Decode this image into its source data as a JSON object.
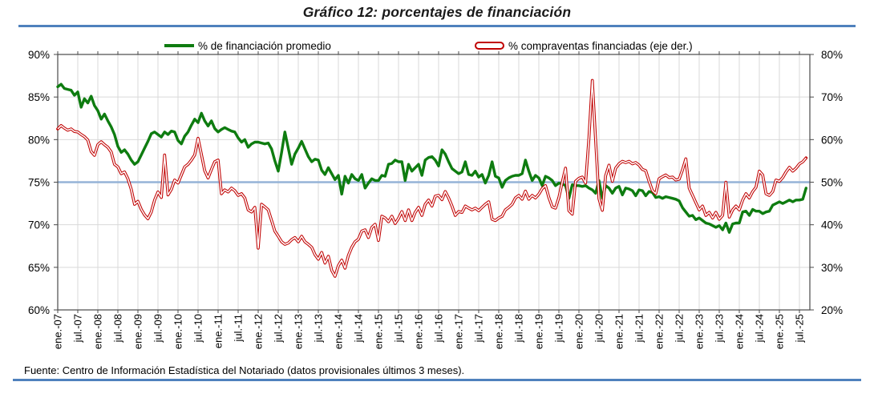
{
  "title": "Gráfico 12: porcentajes de financiación",
  "source": "Fuente: Centro de Información Estadística del Notariado (datos provisionales últimos 3 meses).",
  "legend": [
    {
      "label": "% de financiación promedio",
      "color": "#0e7c10",
      "marker": "line"
    },
    {
      "label": "% compraventas financiadas (eje der.)",
      "color": "#c00000",
      "marker": "outlined-line"
    }
  ],
  "colors": {
    "rule_blue": "#4f81bd",
    "reference_line": "#95b3d7",
    "grid": "#d9d9d9",
    "frame": "#4a4a4a",
    "green": "#0e7c10",
    "red": "#c00000"
  },
  "axes": {
    "left_ticks": [
      "90%",
      "85%",
      "80%",
      "75%",
      "70%",
      "65%",
      "60%"
    ],
    "right_ticks": [
      "80%",
      "70%",
      "60%",
      "50%",
      "40%",
      "30%",
      "20%"
    ],
    "x_ticks": [
      "ene.-07",
      "jul.-07",
      "ene.-08",
      "jul.-08",
      "ene.-09",
      "jul.-09",
      "ene.-10",
      "jul.-10",
      "ene.-11",
      "jul.-11",
      "ene.-12",
      "jul.-12",
      "ene.-13",
      "jul.-13",
      "ene.-14",
      "jul.-14",
      "ene.-15",
      "jul.-15",
      "ene.-16",
      "jul.-16",
      "ene.-17",
      "jul.-17",
      "ene.-18",
      "jul.-18",
      "ene.-19",
      "jul.-19",
      "ene.-20",
      "jul.-20",
      "ene.-21",
      "jul.-21",
      "ene.-22",
      "jul.-22",
      "ene.-23",
      "jul.-23",
      "ene.-24",
      "jul.-24",
      "ene.-25",
      "jul.-25"
    ]
  },
  "chart_data": {
    "type": "line",
    "freq": "monthly",
    "start": "ene.-07",
    "end": "sep.-25",
    "grid": true,
    "legend_position": "top",
    "left_axis": {
      "min": 60,
      "max": 90,
      "step": 5
    },
    "right_axis": {
      "min": 20,
      "max": 80,
      "step": 10
    },
    "reference_line_left": 75,
    "series": [
      {
        "name": "% de financiación promedio",
        "axis": "left",
        "color": "#0e7c10",
        "values": [
          86.2,
          86.5,
          86.0,
          85.9,
          85.8,
          85.2,
          85.6,
          83.8,
          84.8,
          84.3,
          85.1,
          84.0,
          83.4,
          82.4,
          83.0,
          82.2,
          81.5,
          80.6,
          79.2,
          78.5,
          78.8,
          78.3,
          77.6,
          77.1,
          77.4,
          78.2,
          79.0,
          79.8,
          80.7,
          80.9,
          80.6,
          80.3,
          80.9,
          80.6,
          81.0,
          80.9,
          79.9,
          79.5,
          80.4,
          80.9,
          81.7,
          82.4,
          82.0,
          83.1,
          82.2,
          81.6,
          82.2,
          81.3,
          80.9,
          81.2,
          81.4,
          81.2,
          81.0,
          80.9,
          80.2,
          79.7,
          80.0,
          79.1,
          79.5,
          79.7,
          79.7,
          79.6,
          79.5,
          79.6,
          78.9,
          77.5,
          76.3,
          78.5,
          80.9,
          79.0,
          77.1,
          78.3,
          79.0,
          79.8,
          78.9,
          78.0,
          77.4,
          77.7,
          77.6,
          76.4,
          75.9,
          76.7,
          76.0,
          75.3,
          75.8,
          73.6,
          75.7,
          74.9,
          75.9,
          75.4,
          75.2,
          75.9,
          74.3,
          74.9,
          75.4,
          75.2,
          75.2,
          75.8,
          75.7,
          77.1,
          77.2,
          77.6,
          77.4,
          77.4,
          75.2,
          77.1,
          76.3,
          76.7,
          77.1,
          75.8,
          77.6,
          77.9,
          78.0,
          77.6,
          76.9,
          78.8,
          78.3,
          77.4,
          76.6,
          76.3,
          76.0,
          76.2,
          77.4,
          75.9,
          75.8,
          76.3,
          75.6,
          75.9,
          74.9,
          75.8,
          77.4,
          75.7,
          75.5,
          74.4,
          75.2,
          75.5,
          75.7,
          75.8,
          75.8,
          76.0,
          77.6,
          76.3,
          75.2,
          75.8,
          75.5,
          74.6,
          75.7,
          75.5,
          75.2,
          74.6,
          74.9,
          74.8,
          74.6,
          73.1,
          74.7,
          74.6,
          74.6,
          74.5,
          74.6,
          74.3,
          74.1,
          73.7,
          75.2,
          73.1,
          74.6,
          74.3,
          73.7,
          74.3,
          74.5,
          73.5,
          74.3,
          74.2,
          74.0,
          73.4,
          74.1,
          74.0,
          73.4,
          73.9,
          73.8,
          73.2,
          73.3,
          73.1,
          73.3,
          73.2,
          73.1,
          73.0,
          72.8,
          72.0,
          71.5,
          71.0,
          71.1,
          70.6,
          70.8,
          70.5,
          70.2,
          70.1,
          69.9,
          69.7,
          69.9,
          69.4,
          70.2,
          69.1,
          70.1,
          70.2,
          70.2,
          71.5,
          71.6,
          71.1,
          71.8,
          71.6,
          71.6,
          71.3,
          71.5,
          71.6,
          72.3,
          72.5,
          72.7,
          72.5,
          72.7,
          72.9,
          72.7,
          72.9,
          72.9,
          73.0,
          74.3
        ]
      },
      {
        "name": "% compraventas financiadas (eje der.)",
        "axis": "right",
        "color": "#c00000",
        "values": [
          62.5,
          63.3,
          62.7,
          62.2,
          62.5,
          61.9,
          61.8,
          61.2,
          60.7,
          59.9,
          57.2,
          56.3,
          58.8,
          59.5,
          58.8,
          58.2,
          57.1,
          54.2,
          53.6,
          52.0,
          52.4,
          50.8,
          48.3,
          44.8,
          45.5,
          43.6,
          42.3,
          41.4,
          43.0,
          45.8,
          47.7,
          46.4,
          56.4,
          47.0,
          48.3,
          50.5,
          49.8,
          51.7,
          53.6,
          54.2,
          55.2,
          56.4,
          60.3,
          56.5,
          52.7,
          51.0,
          53.0,
          54.8,
          55.2,
          47.3,
          48.2,
          47.7,
          48.6,
          48.0,
          46.9,
          47.3,
          46.3,
          43.5,
          43.0,
          44.1,
          34.5,
          44.8,
          44.2,
          43.5,
          41.0,
          38.5,
          37.3,
          36.0,
          35.4,
          35.7,
          36.5,
          37.0,
          36.0,
          37.3,
          36.0,
          35.4,
          34.7,
          33.0,
          31.9,
          33.5,
          31.0,
          32.6,
          29.3,
          27.9,
          30.4,
          31.7,
          29.8,
          32.8,
          34.7,
          36.0,
          36.6,
          38.5,
          38.8,
          37.0,
          39.4,
          40.1,
          36.3,
          42.0,
          41.6,
          40.7,
          42.0,
          40.3,
          41.5,
          43.1,
          41.0,
          43.5,
          41.0,
          42.9,
          44.1,
          42.2,
          44.8,
          45.8,
          44.4,
          46.7,
          46.9,
          45.9,
          47.8,
          46.3,
          44.4,
          42.2,
          43.1,
          42.9,
          44.4,
          43.9,
          43.5,
          43.9,
          43.3,
          44.1,
          44.8,
          45.4,
          41.3,
          41.0,
          41.6,
          42.0,
          43.5,
          44.1,
          44.8,
          46.3,
          46.9,
          46.0,
          47.9,
          46.0,
          46.9,
          46.3,
          47.2,
          48.5,
          49.2,
          46.4,
          44.2,
          43.9,
          46.4,
          50.0,
          53.3,
          43.3,
          42.5,
          50.2,
          50.9,
          51.2,
          49.8,
          60.4,
          73.9,
          59.9,
          46.1,
          43.4,
          51.5,
          54.0,
          50.2,
          53.3,
          54.3,
          54.9,
          54.6,
          54.9,
          54.3,
          54.6,
          54.0,
          53.0,
          52.7,
          50.2,
          48.0,
          47.3,
          50.8,
          51.3,
          51.7,
          51.1,
          51.2,
          50.5,
          50.7,
          52.9,
          55.5,
          48.6,
          46.9,
          45.2,
          43.5,
          44.4,
          42.2,
          42.9,
          41.6,
          42.9,
          41.3,
          42.2,
          50.0,
          41.8,
          43.5,
          44.4,
          43.5,
          45.8,
          47.3,
          46.3,
          47.8,
          48.8,
          52.6,
          51.7,
          47.3,
          46.9,
          47.8,
          50.5,
          50.2,
          51.1,
          52.4,
          53.5,
          52.6,
          53.3,
          54.3,
          54.8,
          55.7
        ]
      }
    ]
  }
}
